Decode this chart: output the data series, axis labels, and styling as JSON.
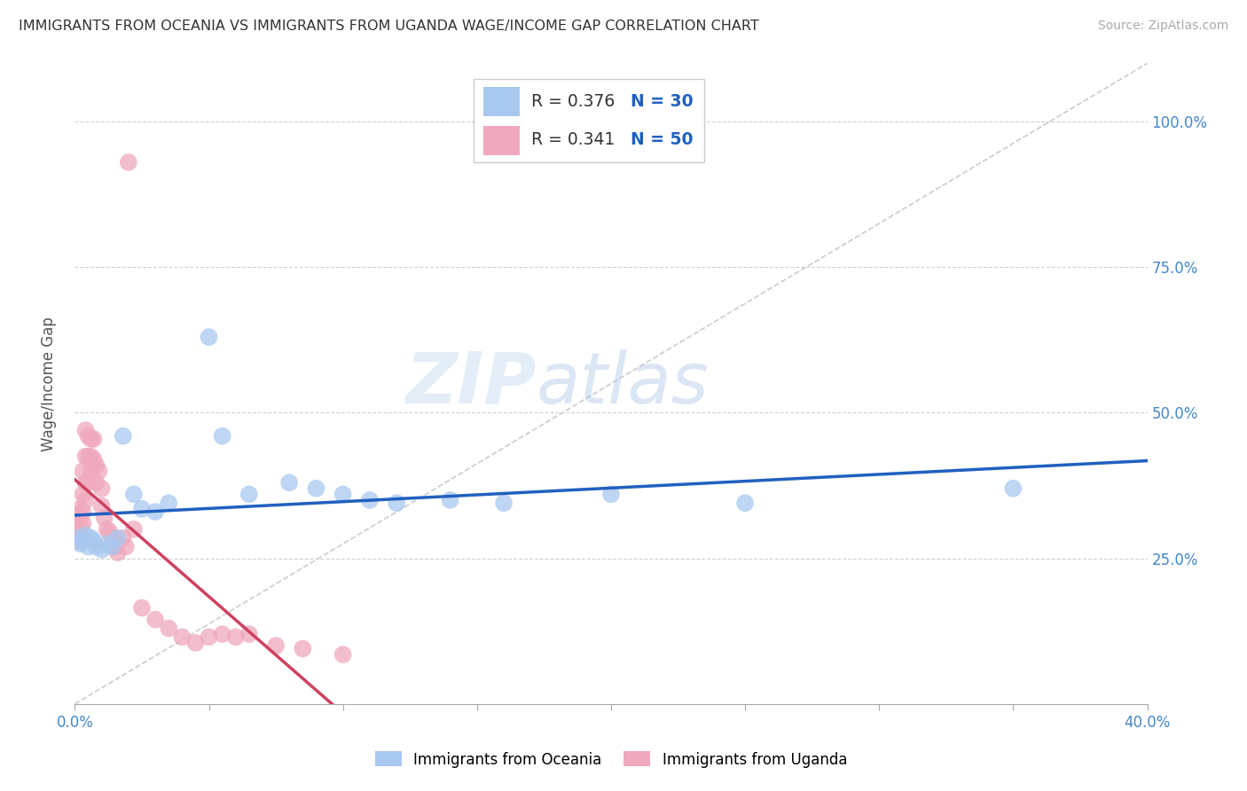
{
  "title": "IMMIGRANTS FROM OCEANIA VS IMMIGRANTS FROM UGANDA WAGE/INCOME GAP CORRELATION CHART",
  "source": "Source: ZipAtlas.com",
  "ylabel": "Wage/Income Gap",
  "legend_label1": "Immigrants from Oceania",
  "legend_label2": "Immigrants from Uganda",
  "R1": "0.376",
  "N1": "30",
  "R2": "0.341",
  "N2": "50",
  "color1": "#a8c8f0",
  "color2": "#f0a8bc",
  "trendline_color1": "#2060c0",
  "trendline_color2": "#d04060",
  "watermark_zip": "ZIP",
  "watermark_atlas": "atlas",
  "background_color": "#ffffff",
  "oceania_x": [
    0.001,
    0.002,
    0.003,
    0.004,
    0.005,
    0.006,
    0.007,
    0.008,
    0.01,
    0.012,
    0.014,
    0.016,
    0.018,
    0.022,
    0.025,
    0.03,
    0.035,
    0.05,
    0.055,
    0.065,
    0.08,
    0.09,
    0.1,
    0.11,
    0.12,
    0.14,
    0.16,
    0.2,
    0.25,
    0.35
  ],
  "oceania_y": [
    0.285,
    0.275,
    0.28,
    0.29,
    0.27,
    0.285,
    0.28,
    0.27,
    0.265,
    0.275,
    0.27,
    0.285,
    0.46,
    0.36,
    0.335,
    0.33,
    0.345,
    0.63,
    0.46,
    0.36,
    0.38,
    0.37,
    0.36,
    0.35,
    0.345,
    0.35,
    0.345,
    0.36,
    0.345,
    0.37
  ],
  "uganda_x": [
    0.001,
    0.001,
    0.001,
    0.002,
    0.002,
    0.002,
    0.002,
    0.003,
    0.003,
    0.003,
    0.003,
    0.004,
    0.004,
    0.004,
    0.004,
    0.005,
    0.005,
    0.005,
    0.006,
    0.006,
    0.006,
    0.007,
    0.007,
    0.008,
    0.008,
    0.009,
    0.01,
    0.01,
    0.011,
    0.012,
    0.013,
    0.014,
    0.015,
    0.016,
    0.018,
    0.019,
    0.02,
    0.022,
    0.025,
    0.03,
    0.035,
    0.04,
    0.045,
    0.05,
    0.055,
    0.06,
    0.065,
    0.075,
    0.085,
    0.1
  ],
  "uganda_y": [
    0.28,
    0.3,
    0.325,
    0.29,
    0.305,
    0.32,
    0.335,
    0.31,
    0.33,
    0.36,
    0.4,
    0.35,
    0.38,
    0.425,
    0.47,
    0.38,
    0.425,
    0.46,
    0.4,
    0.425,
    0.455,
    0.42,
    0.455,
    0.38,
    0.41,
    0.4,
    0.37,
    0.34,
    0.32,
    0.3,
    0.295,
    0.285,
    0.27,
    0.26,
    0.285,
    0.27,
    0.93,
    0.3,
    0.165,
    0.145,
    0.13,
    0.115,
    0.105,
    0.115,
    0.12,
    0.115,
    0.12,
    0.1,
    0.095,
    0.085
  ],
  "xlim": [
    0.0,
    0.4
  ],
  "ylim": [
    0.0,
    1.1
  ],
  "ytick_positions": [
    0.25,
    0.5,
    0.75,
    1.0
  ],
  "ytick_labels": [
    "25.0%",
    "50.0%",
    "75.0%",
    "100.0%"
  ],
  "figsize": [
    14.06,
    8.92
  ],
  "dpi": 100
}
